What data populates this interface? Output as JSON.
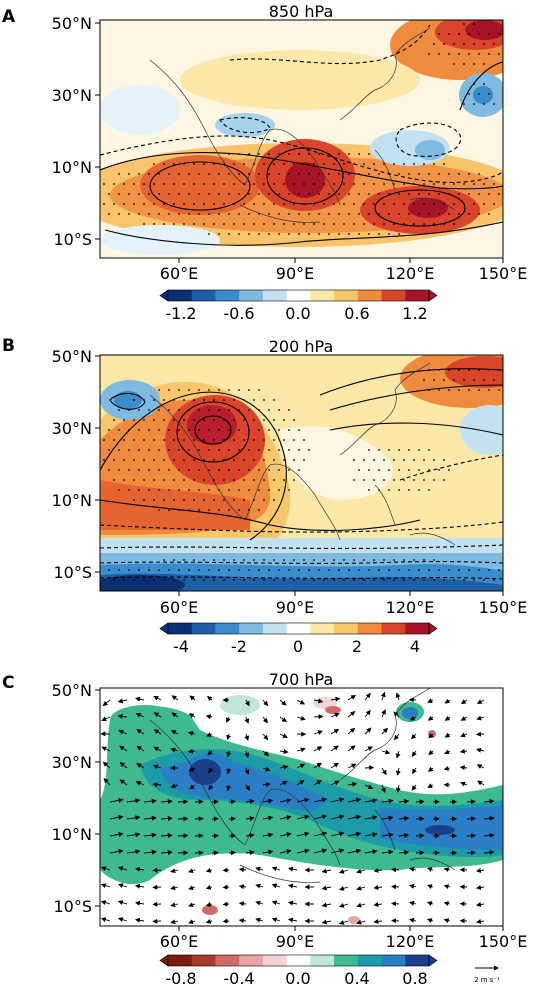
{
  "panels": [
    {
      "letter": "A",
      "title": "850 hPa",
      "lat_labels": [
        "50°N",
        "30°N",
        "10°N",
        "10°S"
      ],
      "lon_labels": [
        "60°E",
        "90°E",
        "120°E",
        "150°E"
      ],
      "colorbar_ticks": [
        "-1.2",
        "-0.6",
        "0.0",
        "0.6",
        "1.2"
      ],
      "colorbar_colors": [
        "#0a2f73",
        "#1f5fa8",
        "#3a8ccc",
        "#7fbbe0",
        "#c4e1f2",
        "#ffffff",
        "#fce8a8",
        "#f8c66b",
        "#ef8b3e",
        "#d9452a",
        "#a81427"
      ]
    },
    {
      "letter": "B",
      "title": "200 hPa",
      "lat_labels": [
        "50°N",
        "30°N",
        "10°N",
        "10°S"
      ],
      "lon_labels": [
        "60°E",
        "90°E",
        "120°E",
        "150°E"
      ],
      "colorbar_ticks": [
        "-4",
        "-2",
        "0",
        "2",
        "4"
      ],
      "colorbar_colors": [
        "#0a2f73",
        "#1f5fa8",
        "#3a8ccc",
        "#7fbbe0",
        "#c4e1f2",
        "#ffffff",
        "#fce8a8",
        "#f8c66b",
        "#ef8b3e",
        "#d9452a",
        "#a81427"
      ]
    },
    {
      "letter": "C",
      "title": "700 hPa",
      "lat_labels": [
        "50°N",
        "30°N",
        "10°N",
        "10°S"
      ],
      "lon_labels": [
        "60°E",
        "90°E",
        "120°E",
        "150°E"
      ],
      "colorbar_ticks": [
        "-0.8",
        "-0.4",
        "0.0",
        "0.4",
        "0.8"
      ],
      "colorbar_colors": [
        "#7a1d0e",
        "#a83a2a",
        "#cf6b6a",
        "#e8a3a6",
        "#f5d3d5",
        "#ffffff",
        "#bfe8d6",
        "#3fb98f",
        "#1e9ba8",
        "#2a7fc4",
        "#1b3f8a"
      ],
      "reference_vector_label": "2 m s⁻¹"
    }
  ]
}
